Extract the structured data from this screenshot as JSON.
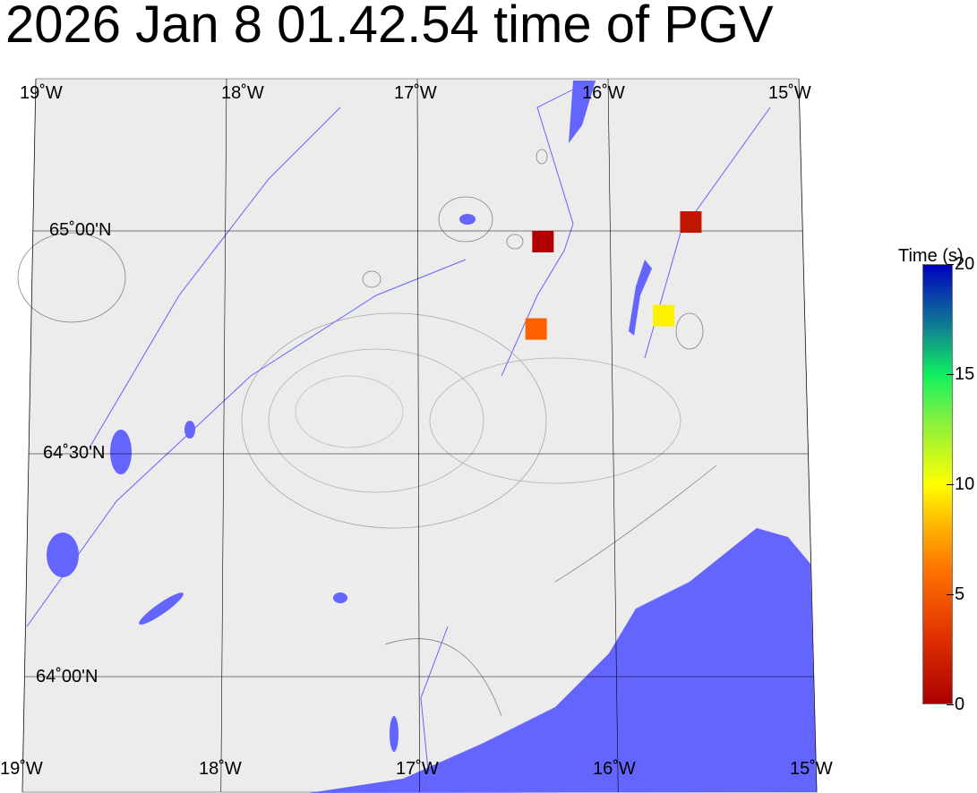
{
  "title": "2026 Jan 8 01.42.54 time of PGV",
  "map": {
    "land_color": "#ececec",
    "water_color": "#6464ff",
    "grid_color": "#000000",
    "lon_labels_top": [
      "19˚W",
      "18˚W",
      "17˚W",
      "16˚W",
      "15˚W"
    ],
    "lon_labels_bottom": [
      "19˚W",
      "18˚W",
      "17˚W",
      "16˚W",
      "15˚W"
    ],
    "lat_labels": [
      "65˚00'N",
      "64˚30'N",
      "64˚00'N"
    ],
    "longitudes": [
      -19,
      -18,
      -17,
      -16,
      -15
    ],
    "latitudes": [
      65.0,
      64.5,
      64.0
    ]
  },
  "stations": [
    {
      "lon": -16.35,
      "lat": 64.976,
      "time_s": 0.5,
      "color": "#b20000"
    },
    {
      "lon": -15.58,
      "lat": 65.02,
      "time_s": 1.5,
      "color": "#c01800"
    },
    {
      "lon": -16.39,
      "lat": 64.78,
      "time_s": 5.5,
      "color": "#ff6000"
    },
    {
      "lon": -15.73,
      "lat": 64.81,
      "time_s": 10.0,
      "color": "#fff000"
    }
  ],
  "colorbar": {
    "title": "Time (s)",
    "min": 0,
    "max": 20,
    "ticks": [
      "0",
      "5",
      "10",
      "15",
      "20"
    ],
    "colormap": [
      "#aa0000",
      "#ff7000",
      "#ffff00",
      "#10f060",
      "#0000c0"
    ]
  }
}
